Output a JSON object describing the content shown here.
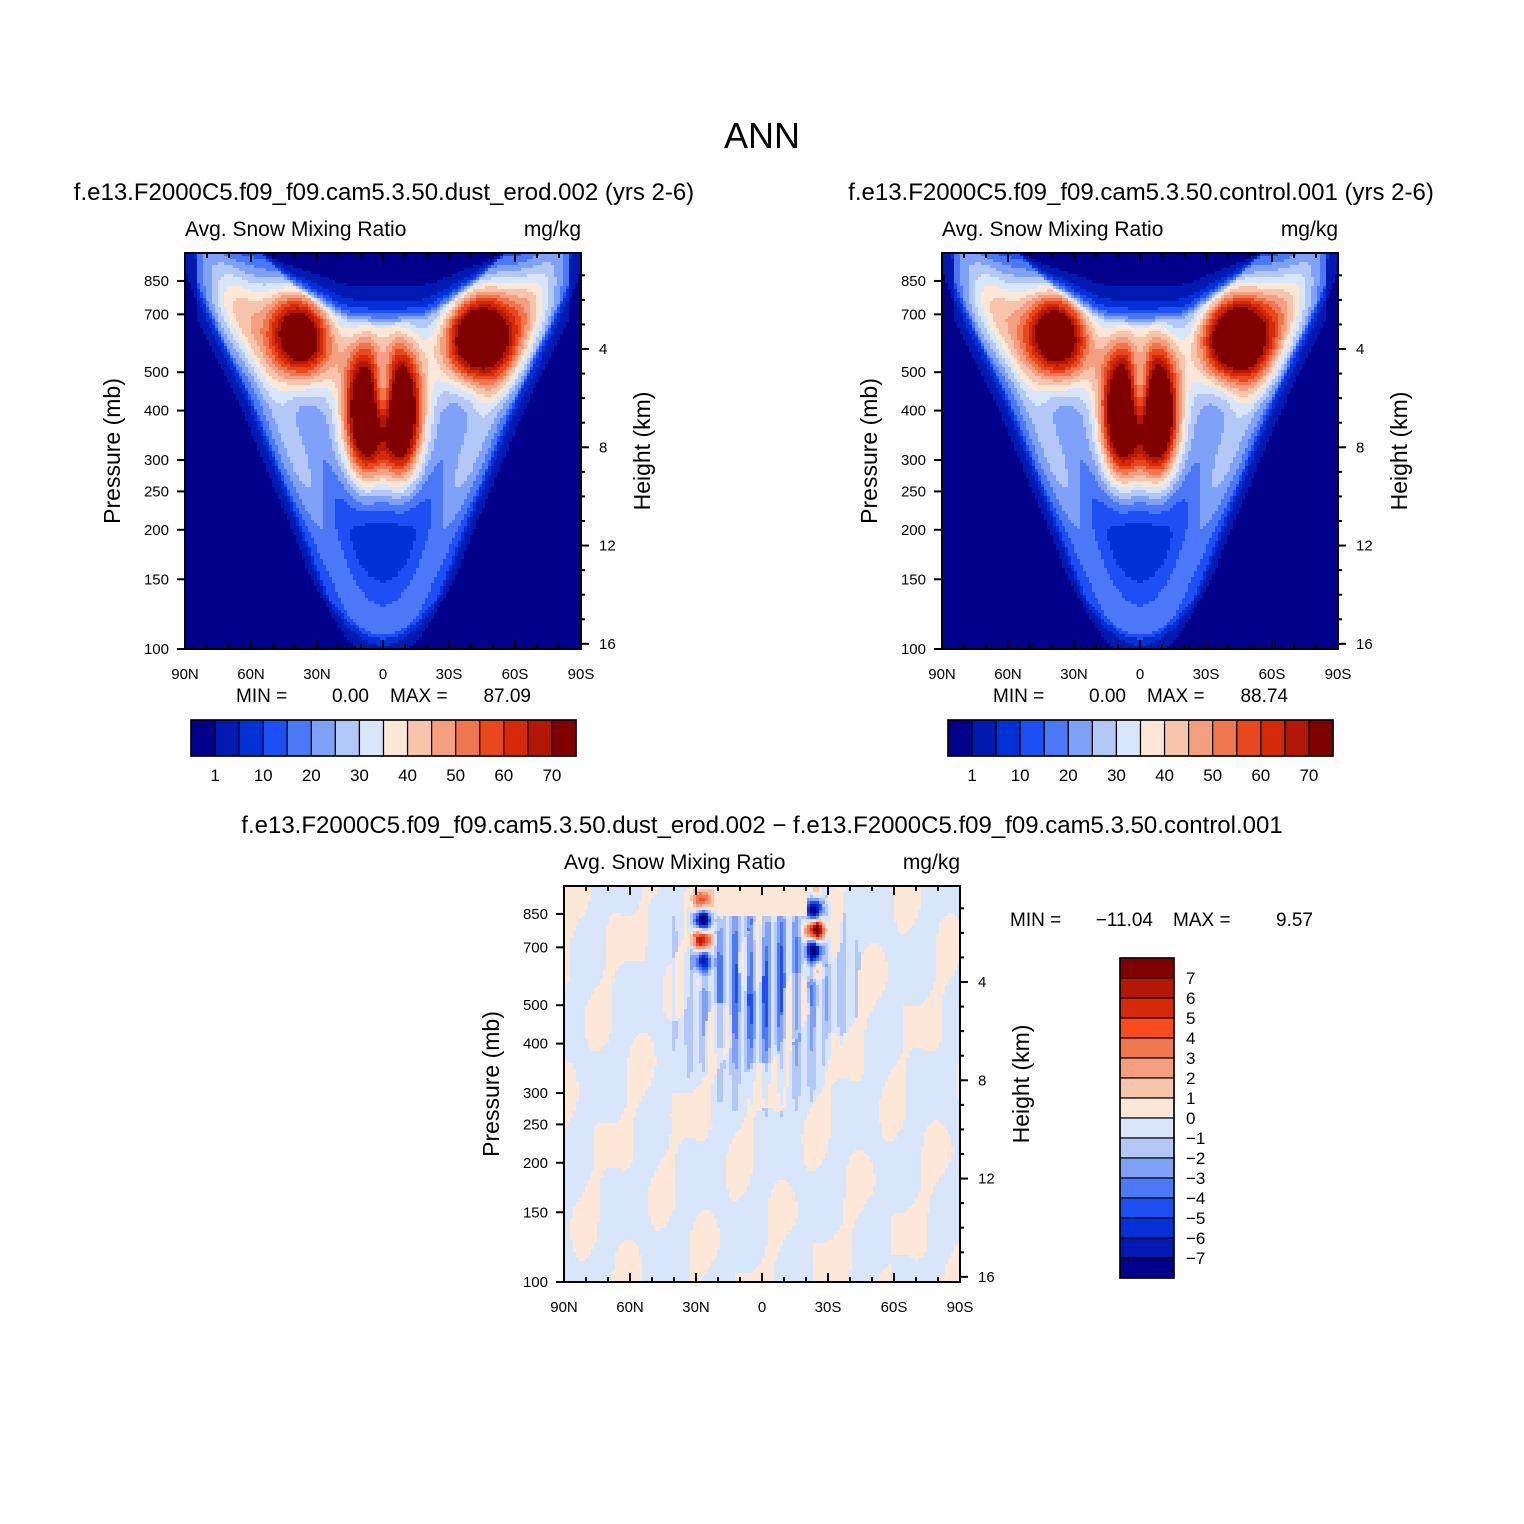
{
  "figure": {
    "title": "ANN",
    "colors": {
      "seq": [
        "#00008a",
        "#0019b0",
        "#0031d6",
        "#1e4ff5",
        "#4a78f7",
        "#7fa1f7",
        "#b3c8f7",
        "#d8e6fb",
        "#fde8d8",
        "#f9c4ac",
        "#f4a080",
        "#f07650",
        "#e9471c",
        "#d52a08",
        "#b31806",
        "#800000"
      ],
      "div": [
        "#800000",
        "#b31806",
        "#d52a08",
        "#f94b1e",
        "#f07650",
        "#f4a080",
        "#f9c4ac",
        "#fde8d8",
        "#d8e6fb",
        "#b3c8f7",
        "#7fa1f7",
        "#4a78f7",
        "#1e4ff5",
        "#0031d6",
        "#0019b0",
        "#00008a"
      ]
    }
  },
  "chart_data": [
    {
      "id": "panel1",
      "type": "heatmap",
      "run_title": "f.e13.F2000C5.f09_f09.cam5.3.50.dust_erod.002 (yrs 2-6)",
      "left_label": "Avg. Snow Mixing Ratio",
      "right_label": "mg/kg",
      "ylabel": "Pressure (mb)",
      "y2label": "Height (km)",
      "xticks": [
        "90N",
        "60N",
        "30N",
        "0",
        "30S",
        "60S",
        "90S"
      ],
      "xvalues": [
        -90,
        -60,
        -30,
        0,
        30,
        60,
        90
      ],
      "yticks": [
        "100",
        "150",
        "200",
        "250",
        "300",
        "400",
        "500",
        "700",
        "850"
      ],
      "yvalues": [
        100,
        150,
        200,
        250,
        300,
        400,
        500,
        700,
        850
      ],
      "ylim": [
        100,
        1000
      ],
      "y2ticks": [
        "16",
        "12",
        "8",
        "4"
      ],
      "y2values": [
        16,
        12,
        8,
        4
      ],
      "min_label": "MIN =",
      "min_value": "0.00",
      "max_label": "MAX =",
      "max_value": "87.09",
      "levels": [
        1,
        5,
        10,
        15,
        20,
        25,
        30,
        35,
        40,
        45,
        50,
        55,
        60,
        65,
        70
      ],
      "colorbar_labels": [
        "1",
        "10",
        "20",
        "30",
        "40",
        "50",
        "60",
        "70"
      ],
      "colorbar_orientation": "horizontal",
      "max_val": 87.09
    },
    {
      "id": "panel2",
      "type": "heatmap",
      "run_title": "f.e13.F2000C5.f09_f09.cam5.3.50.control.001 (yrs 2-6)",
      "left_label": "Avg. Snow Mixing Ratio",
      "right_label": "mg/kg",
      "ylabel": "Pressure (mb)",
      "y2label": "Height (km)",
      "xticks": [
        "90N",
        "60N",
        "30N",
        "0",
        "30S",
        "60S",
        "90S"
      ],
      "xvalues": [
        -90,
        -60,
        -30,
        0,
        30,
        60,
        90
      ],
      "yticks": [
        "100",
        "150",
        "200",
        "250",
        "300",
        "400",
        "500",
        "700",
        "850"
      ],
      "yvalues": [
        100,
        150,
        200,
        250,
        300,
        400,
        500,
        700,
        850
      ],
      "ylim": [
        100,
        1000
      ],
      "y2ticks": [
        "16",
        "12",
        "8",
        "4"
      ],
      "y2values": [
        16,
        12,
        8,
        4
      ],
      "min_label": "MIN =",
      "min_value": "0.00",
      "max_label": "MAX =",
      "max_value": "88.74",
      "levels": [
        1,
        5,
        10,
        15,
        20,
        25,
        30,
        35,
        40,
        45,
        50,
        55,
        60,
        65,
        70
      ],
      "colorbar_labels": [
        "1",
        "10",
        "20",
        "30",
        "40",
        "50",
        "60",
        "70"
      ],
      "colorbar_orientation": "horizontal",
      "max_val": 88.74
    },
    {
      "id": "panel3",
      "type": "heatmap",
      "run_title": "f.e13.F2000C5.f09_f09.cam5.3.50.dust_erod.002 − f.e13.F2000C5.f09_f09.cam5.3.50.control.001",
      "left_label": "Avg. Snow Mixing Ratio",
      "right_label": "mg/kg",
      "ylabel": "Pressure (mb)",
      "y2label": "Height (km)",
      "xticks": [
        "90N",
        "60N",
        "30N",
        "0",
        "30S",
        "60S",
        "90S"
      ],
      "xvalues": [
        -90,
        -60,
        -30,
        0,
        30,
        60,
        90
      ],
      "yticks": [
        "100",
        "150",
        "200",
        "250",
        "300",
        "400",
        "500",
        "700",
        "850"
      ],
      "yvalues": [
        100,
        150,
        200,
        250,
        300,
        400,
        500,
        700,
        850
      ],
      "ylim": [
        100,
        1000
      ],
      "y2ticks": [
        "16",
        "12",
        "8",
        "4"
      ],
      "y2values": [
        16,
        12,
        8,
        4
      ],
      "min_label": "MIN =",
      "min_value": "−11.04",
      "max_label": "MAX =",
      "max_value": "9.57",
      "levels": [
        7,
        6,
        5,
        4,
        3,
        2,
        1,
        0,
        -1,
        -2,
        -3,
        -4,
        -5,
        -6,
        -7
      ],
      "colorbar_labels": [
        "7",
        "6",
        "5",
        "4",
        "3",
        "2",
        "1",
        "0",
        "−1",
        "−2",
        "−3",
        "−4",
        "−5",
        "−6",
        "−7"
      ],
      "colorbar_orientation": "vertical"
    }
  ]
}
